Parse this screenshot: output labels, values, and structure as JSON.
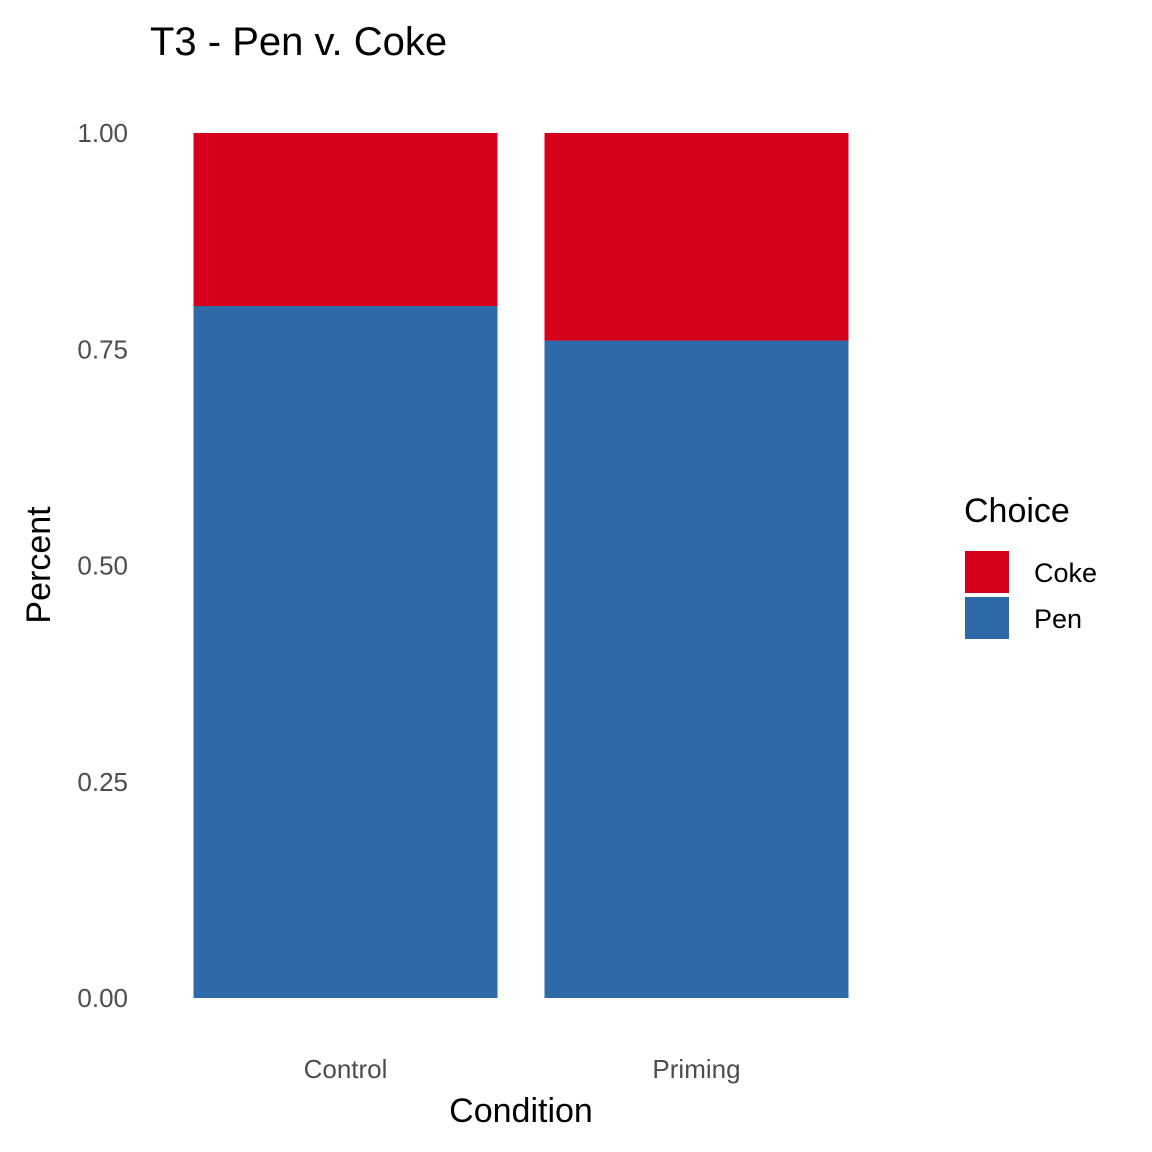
{
  "chart_data": {
    "type": "bar",
    "stacked": true,
    "title": "T3 - Pen v. Coke",
    "xlabel": "Condition",
    "ylabel": "Percent",
    "categories": [
      "Control",
      "Priming"
    ],
    "series": [
      {
        "name": "Pen",
        "values": [
          0.8,
          0.76
        ],
        "color": "#2E6AA8"
      },
      {
        "name": "Coke",
        "values": [
          0.2,
          0.24
        ],
        "color": "#D7001A"
      }
    ],
    "ylim": [
      0,
      1
    ],
    "yticks": [
      "0.00",
      "0.25",
      "0.50",
      "0.75",
      "1.00"
    ],
    "grid": false,
    "legend": {
      "title": "Choice",
      "placement": "right",
      "items": [
        {
          "label": "Coke",
          "color": "#D7001A"
        },
        {
          "label": "Pen",
          "color": "#2E6AA8"
        }
      ]
    }
  }
}
